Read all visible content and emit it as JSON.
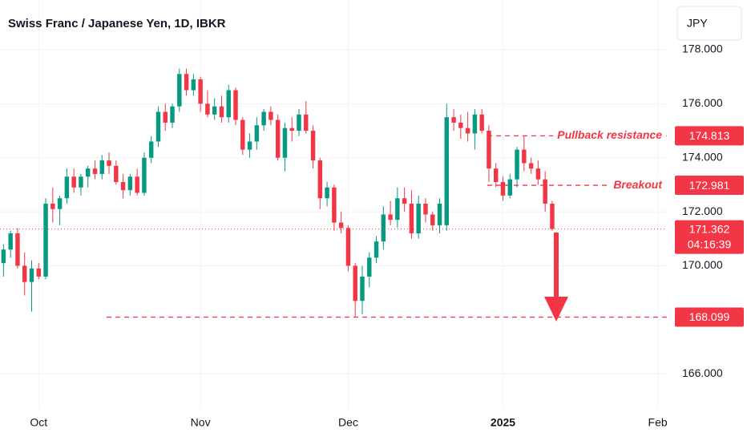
{
  "chart_data": {
    "type": "candlestick",
    "title": "Swiss Franc / Japanese Yen, 1D, IBKR",
    "currency": "JPY",
    "up_color": "#089981",
    "down_color": "#f23645",
    "open": [
      170.1,
      170.6,
      171.2,
      170.0,
      169.4,
      169.9,
      169.6,
      172.3,
      172.1,
      172.5,
      173.3,
      172.9,
      173.3,
      173.6,
      173.4,
      173.9,
      173.7,
      173.1,
      172.8,
      173.3,
      172.7,
      174.0,
      174.6,
      175.7,
      175.3,
      175.9,
      177.1,
      176.5,
      176.9,
      176.0,
      175.6,
      175.9,
      175.5,
      176.5,
      175.4,
      174.3,
      174.6,
      175.2,
      175.7,
      175.4,
      174.0,
      175.1,
      175.0,
      175.6,
      175.0,
      173.9,
      172.5,
      172.9,
      171.6,
      171.4,
      170.0,
      168.7,
      169.6,
      170.3,
      170.9,
      171.9,
      171.7,
      172.5,
      172.3,
      171.2,
      172.3,
      171.9,
      171.5,
      171.5,
      175.5,
      175.3,
      175.1,
      174.9,
      175.6,
      175.0,
      173.6,
      173.1,
      172.6,
      173.2,
      174.3,
      173.8,
      173.6,
      173.2,
      172.3
    ],
    "high": [
      170.8,
      171.3,
      171.4,
      170.5,
      170.2,
      170.1,
      172.5,
      172.9,
      172.6,
      173.6,
      173.6,
      173.4,
      173.7,
      173.9,
      174.1,
      174.2,
      173.9,
      173.4,
      173.4,
      173.6,
      174.2,
      174.8,
      175.9,
      176.0,
      176.0,
      177.3,
      177.3,
      177.1,
      177.0,
      176.5,
      176.2,
      176.3,
      176.7,
      176.6,
      175.5,
      174.9,
      175.5,
      175.8,
      175.9,
      175.6,
      175.3,
      175.5,
      175.8,
      176.1,
      175.2,
      174.0,
      173.1,
      173.0,
      172.0,
      171.5,
      170.1,
      170.0,
      170.5,
      171.1,
      172.2,
      172.4,
      172.9,
      172.9,
      172.8,
      172.6,
      172.5,
      172.0,
      172.5,
      176.0,
      175.8,
      175.6,
      175.7,
      175.8,
      175.8,
      175.2,
      173.8,
      173.3,
      173.4,
      174.4,
      174.8,
      174.0,
      173.9,
      173.5,
      172.4
    ],
    "low": [
      169.6,
      170.3,
      169.9,
      168.9,
      168.3,
      169.5,
      169.5,
      171.6,
      171.5,
      172.3,
      172.7,
      172.6,
      172.9,
      173.2,
      173.2,
      173.4,
      173.0,
      172.5,
      172.6,
      172.6,
      172.6,
      173.8,
      174.4,
      175.0,
      175.1,
      175.7,
      176.3,
      176.3,
      175.7,
      175.5,
      175.4,
      175.3,
      175.3,
      175.2,
      174.1,
      174.0,
      174.3,
      175.0,
      175.2,
      173.9,
      173.5,
      174.6,
      174.8,
      174.9,
      173.6,
      172.1,
      172.2,
      171.3,
      171.2,
      169.8,
      168.1,
      168.2,
      169.2,
      170.1,
      170.6,
      171.5,
      171.4,
      172.0,
      171.0,
      171.0,
      171.6,
      171.3,
      171.2,
      171.3,
      175.0,
      174.7,
      174.6,
      174.3,
      174.9,
      173.1,
      172.9,
      172.4,
      172.5,
      172.9,
      173.5,
      173.4,
      173.0,
      172.0,
      171.3
    ],
    "close": [
      170.6,
      171.2,
      170.0,
      169.4,
      169.9,
      169.6,
      172.3,
      172.1,
      172.5,
      173.3,
      172.9,
      173.3,
      173.6,
      173.4,
      173.9,
      173.7,
      173.1,
      172.8,
      173.3,
      172.7,
      174.0,
      174.6,
      175.7,
      175.3,
      175.9,
      177.1,
      176.5,
      176.9,
      176.0,
      175.6,
      175.9,
      175.5,
      176.5,
      175.4,
      174.3,
      174.6,
      175.2,
      175.7,
      175.4,
      174.0,
      175.1,
      175.0,
      175.6,
      175.0,
      173.9,
      172.5,
      172.9,
      171.6,
      171.4,
      170.0,
      168.7,
      169.6,
      170.3,
      170.9,
      171.9,
      171.7,
      172.5,
      172.3,
      171.2,
      172.3,
      171.9,
      171.5,
      172.3,
      175.5,
      175.3,
      175.1,
      174.9,
      175.6,
      175.0,
      173.6,
      173.1,
      172.6,
      173.2,
      174.3,
      173.8,
      173.6,
      173.2,
      172.3,
      171.362
    ],
    "xlim": [
      -0.5,
      94.3
    ],
    "xticks": [
      {
        "value": 5,
        "label": "Oct"
      },
      {
        "value": 28,
        "label": "Nov"
      },
      {
        "value": 49,
        "label": "Dec"
      },
      {
        "value": 71,
        "label": "2025"
      },
      {
        "value": 93,
        "label": "Feb"
      }
    ],
    "ylim": [
      164.7,
      179.84
    ],
    "yticks": [
      {
        "value": 166,
        "label": "166.000"
      },
      {
        "value": 170,
        "label": "170.000"
      },
      {
        "value": 172,
        "label": "172.000"
      },
      {
        "value": 174,
        "label": "174.000"
      },
      {
        "value": 176,
        "label": "176.000"
      },
      {
        "value": 178,
        "label": "178.000"
      }
    ],
    "grid": true,
    "levels": [
      {
        "value": 174.813,
        "label": "174.813",
        "name": "Pullback resistance"
      },
      {
        "value": 172.981,
        "label": "172.981",
        "name": "Breakout"
      },
      {
        "value": 168.099,
        "label": "168.099"
      }
    ],
    "last_price": {
      "value": 171.362,
      "label": "171.362",
      "countdown": "04:16:39"
    }
  }
}
